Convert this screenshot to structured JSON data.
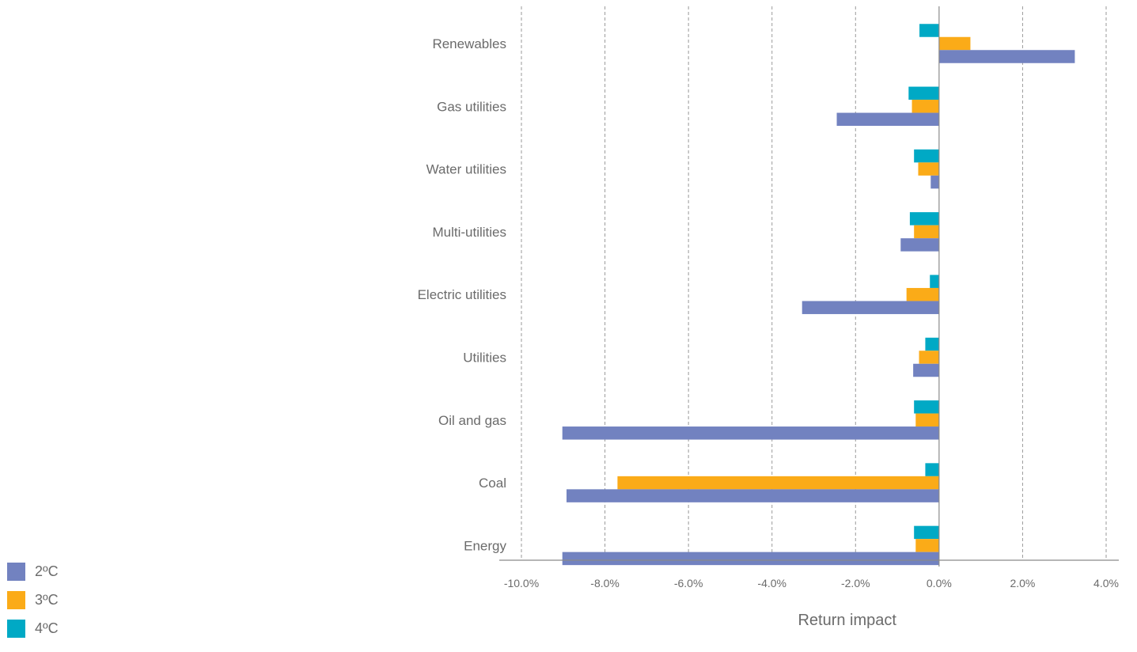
{
  "chart_data": {
    "type": "bar",
    "orientation": "horizontal",
    "categories": [
      "Renewables",
      "Gas utilities",
      "Water utilities",
      "Multi-utilities",
      "Electric utilities",
      "Utilities",
      "Oil and gas",
      "Coal",
      "Energy"
    ],
    "series": [
      {
        "name": "2ºC",
        "color": "#7282c0",
        "values": [
          3.25,
          -2.45,
          -0.2,
          -0.92,
          -3.28,
          -0.62,
          -9.02,
          -8.92,
          -9.02
        ]
      },
      {
        "name": "3ºC",
        "color": "#fbab18",
        "values": [
          0.75,
          -0.65,
          -0.5,
          -0.6,
          -0.78,
          -0.48,
          -0.56,
          -7.7,
          -0.56
        ]
      },
      {
        "name": "4ºC",
        "color": "#00a9c5",
        "values": [
          -0.47,
          -0.73,
          -0.6,
          -0.7,
          -0.22,
          -0.33,
          -0.6,
          -0.33,
          -0.6
        ]
      }
    ],
    "xlabel": "Return impact",
    "xlim": [
      -10,
      4
    ],
    "xticks": [
      "-10.0%",
      "-8.0%",
      "-6.0%",
      "-4.0%",
      "-2.0%",
      "0.0%",
      "2.0%",
      "4.0%"
    ],
    "xtick_values": [
      -10,
      -8,
      -6,
      -4,
      -2,
      0,
      2,
      4
    ],
    "grid": "vertical dashed",
    "legend": "bottom-left"
  }
}
